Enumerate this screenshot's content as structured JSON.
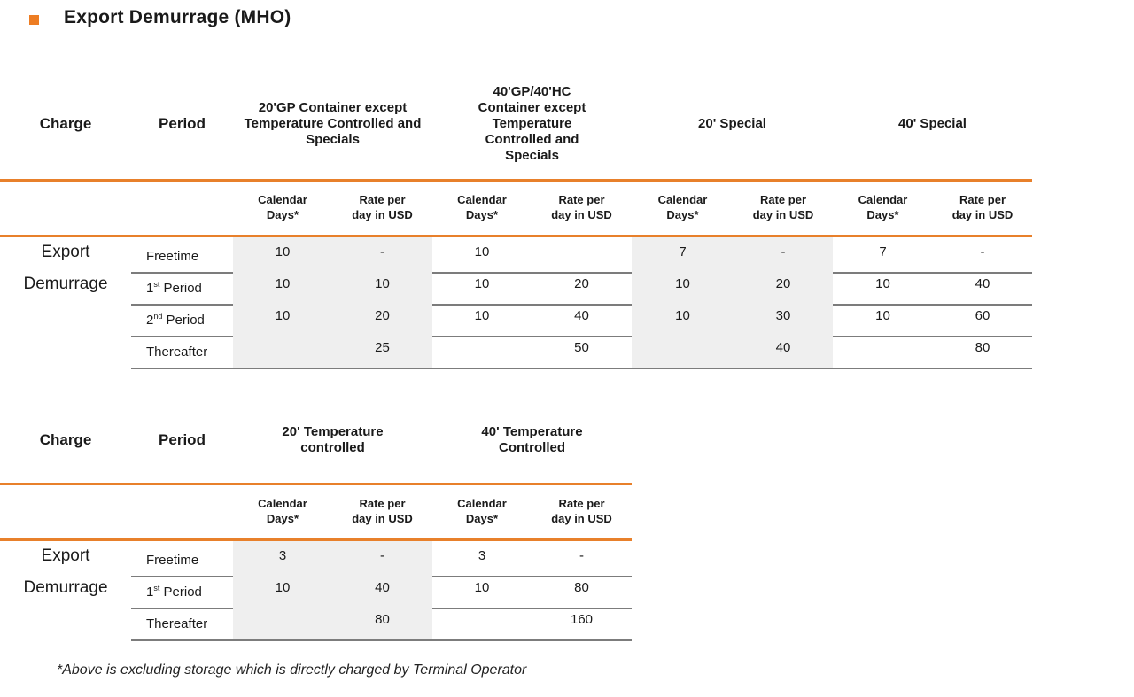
{
  "colors": {
    "accent": "#E8802B",
    "separator": "#7C7C7C",
    "row_shade": "#EFEFEF",
    "title_bullet": "#ED7D23",
    "text": "#1A1A1A"
  },
  "title": "Export Demurrage (MHO)",
  "labels": {
    "calendar": "Calendar Days*",
    "rate": "Rate per day in USD"
  },
  "footnote": "*Above is excluding storage which is directly charged by Terminal Operator",
  "table1": {
    "charge_header": "Charge",
    "period_header": "Period",
    "groups": [
      "20'GP Container except Temperature Controlled and Specials",
      "40'GP/40'HC Container except Temperature Controlled and Specials",
      "20' Special",
      "40' Special"
    ],
    "charge": {
      "line1": "Export",
      "line2": "Demurrage"
    },
    "rows": [
      {
        "period": {
          "num": "Freetime",
          "sup": "",
          "rest": ""
        },
        "values": [
          "10",
          "-",
          "10",
          "",
          "7",
          "-",
          "7",
          "-"
        ]
      },
      {
        "period": {
          "num": "1",
          "sup": "st",
          "rest": " Period"
        },
        "values": [
          "10",
          "10",
          "10",
          "20",
          "10",
          "20",
          "10",
          "40"
        ]
      },
      {
        "period": {
          "num": "2",
          "sup": "nd",
          "rest": " Period"
        },
        "values": [
          "10",
          "20",
          "10",
          "40",
          "10",
          "30",
          "10",
          "60"
        ]
      },
      {
        "period": {
          "num": "Thereafter",
          "sup": "",
          "rest": ""
        },
        "values": [
          "",
          "25",
          "",
          "50",
          "",
          "40",
          "",
          "80"
        ]
      }
    ]
  },
  "table2": {
    "charge_header": "Charge",
    "period_header": "Period",
    "groups": [
      "20' Temperature controlled",
      "40' Temperature Controlled"
    ],
    "charge": {
      "line1": "Export",
      "line2": "Demurrage"
    },
    "rows": [
      {
        "period": {
          "num": "Freetime",
          "sup": "",
          "rest": ""
        },
        "values": [
          "3",
          "-",
          "3",
          "-"
        ]
      },
      {
        "period": {
          "num": "1",
          "sup": "st",
          "rest": " Period"
        },
        "values": [
          "10",
          "40",
          "10",
          "80"
        ]
      },
      {
        "period": {
          "num": "Thereafter",
          "sup": "",
          "rest": ""
        },
        "values": [
          "",
          "80",
          "",
          "160"
        ]
      }
    ]
  }
}
